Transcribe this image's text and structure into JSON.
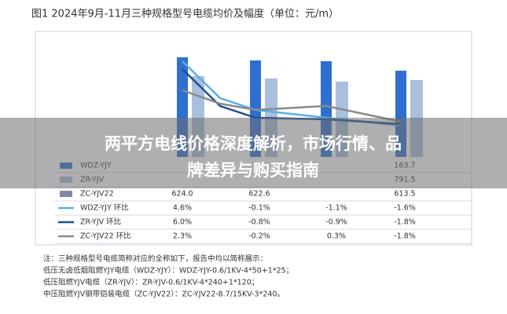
{
  "figure": {
    "title": "图1  2024年9月-11月三种规格型号电缆均价及幅度（单位：元/m）",
    "table": {
      "rows": [
        {
          "label": "WDZ-YJY",
          "color": "#2f6fd0",
          "kind": "box",
          "cells": [
            null,
            null,
            null,
            "163.7"
          ]
        },
        {
          "label": "ZR-YJV",
          "color": "#a9bfdc",
          "kind": "box",
          "cells": [
            null,
            null,
            null,
            "791.5"
          ]
        },
        {
          "label": "ZC-YJV22",
          "color": "#7f8aa0",
          "kind": "box",
          "cells": [
            "624.0",
            "622.6",
            null,
            "613.5"
          ]
        },
        {
          "label": "WDZ-YJY 环比",
          "color": "#5aaee6",
          "kind": "line",
          "cells": [
            "4.6%",
            "-0.1%",
            "-1.1%",
            "-1.6%"
          ]
        },
        {
          "label": "ZR-YJV 环比",
          "color": "#1f4e96",
          "kind": "line",
          "cells": [
            "6.0%",
            "-0.8%",
            "-0.9%",
            "-1.8%"
          ]
        },
        {
          "label": "ZC-YJV22 环比",
          "color": "#8a8a8a",
          "kind": "line",
          "cells": [
            "2.3%",
            "-0.2%",
            "0.3%",
            "-1.8%"
          ]
        }
      ]
    },
    "notes": [
      "注：三种规格型号电缆简称对应的全称如下，报告中均以简称展示：",
      "低压无卤低烟阻燃YJY电缆（WDZ-YJY）：WDZ-YJY-0.6/1KV-4*50+1*25；",
      "低压阻燃YJV电缆（ZR-YJV）：ZR-YJV-0.6/1KV-4*240+1*120；",
      "中压阻燃YJV钢带铠装电缆（ZC-YJV22）：ZC-YJV22-8.7/15KV-3*240。"
    ]
  },
  "banner": {
    "lines": [
      "两平方电线价格深度解析，市场行情、品",
      "牌差异与购买指南"
    ]
  }
}
